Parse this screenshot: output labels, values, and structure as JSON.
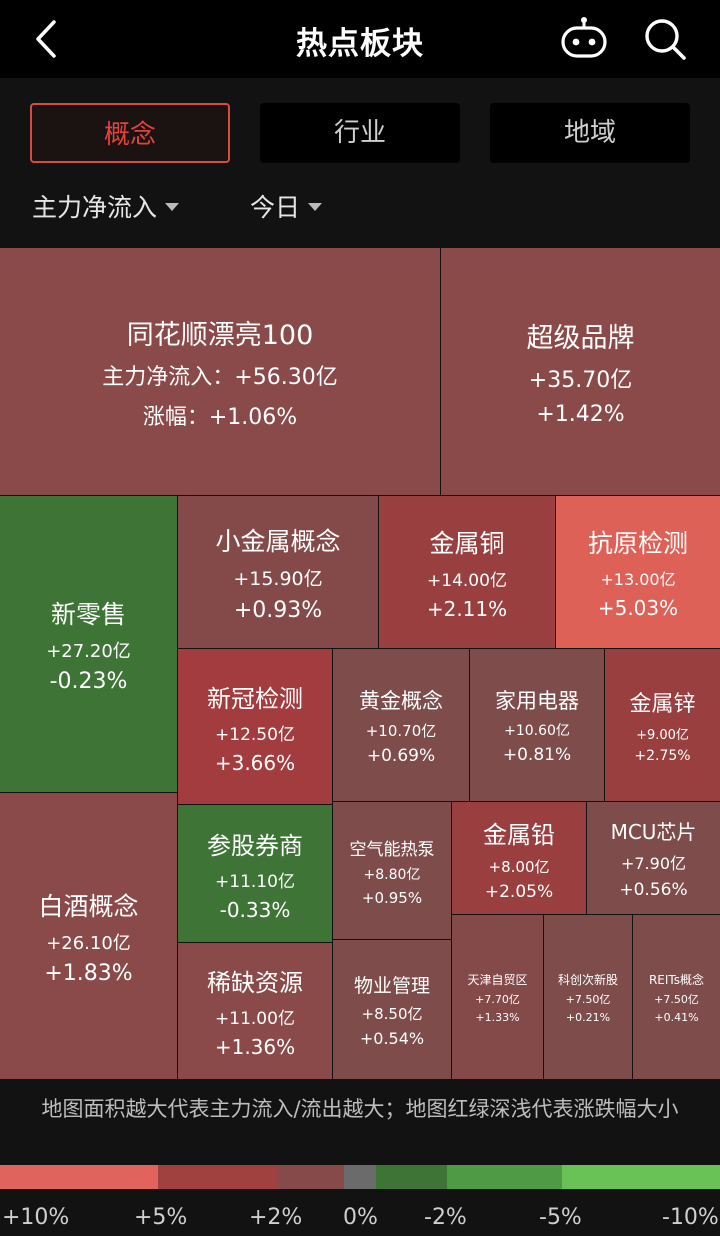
{
  "header": {
    "title": "热点板块"
  },
  "tabs": [
    {
      "label": "概念",
      "active": true
    },
    {
      "label": "行业",
      "active": false
    },
    {
      "label": "地域",
      "active": false
    }
  ],
  "filters": {
    "metric": "主力净流入",
    "period": "今日"
  },
  "treemap": {
    "cells": [
      {
        "name": "同花顺漂亮100",
        "flow": "主力净流入：+56.30亿",
        "change": "涨幅：+1.06%",
        "color": "#8b4a4a",
        "changePct": 1.06
      },
      {
        "name": "超级品牌",
        "flow": "+35.70亿",
        "change": "+1.42%",
        "color": "#8b4a4a",
        "changePct": 1.42
      },
      {
        "name": "新零售",
        "flow": "+27.20亿",
        "change": "-0.23%",
        "color": "#3e7537",
        "changePct": -0.23
      },
      {
        "name": "小金属概念",
        "flow": "+15.90亿",
        "change": "+0.93%",
        "color": "#844949",
        "changePct": 0.93
      },
      {
        "name": "金属铜",
        "flow": "+14.00亿",
        "change": "+2.11%",
        "color": "#993f40",
        "changePct": 2.11
      },
      {
        "name": "抗原检测",
        "flow": "+13.00亿",
        "change": "+5.03%",
        "color": "#de6158",
        "changePct": 5.03
      },
      {
        "name": "白酒概念",
        "flow": "+26.10亿",
        "change": "+1.83%",
        "color": "#8b4a4a",
        "changePct": 1.83
      },
      {
        "name": "新冠检测",
        "flow": "+12.50亿",
        "change": "+3.66%",
        "color": "#a23c3e",
        "changePct": 3.66
      },
      {
        "name": "黄金概念",
        "flow": "+10.70亿",
        "change": "+0.69%",
        "color": "#7f4c4c",
        "changePct": 0.69
      },
      {
        "name": "家用电器",
        "flow": "+10.60亿",
        "change": "+0.81%",
        "color": "#7f4c4c",
        "changePct": 0.81
      },
      {
        "name": "金属锌",
        "flow": "+9.00亿",
        "change": "+2.75%",
        "color": "#993f40",
        "changePct": 2.75
      },
      {
        "name": "参股券商",
        "flow": "+11.10亿",
        "change": "-0.33%",
        "color": "#3e7537",
        "changePct": -0.33
      },
      {
        "name": "空气能热泵",
        "flow": "+8.80亿",
        "change": "+0.95%",
        "color": "#7f4c4c",
        "changePct": 0.95
      },
      {
        "name": "金属铅",
        "flow": "+8.00亿",
        "change": "+2.05%",
        "color": "#993f40",
        "changePct": 2.05
      },
      {
        "name": "MCU芯片",
        "flow": "+7.90亿",
        "change": "+0.56%",
        "color": "#7f4c4c",
        "changePct": 0.56
      },
      {
        "name": "稀缺资源",
        "flow": "+11.00亿",
        "change": "+1.36%",
        "color": "#8b4a4a",
        "changePct": 1.36
      },
      {
        "name": "物业管理",
        "flow": "+8.50亿",
        "change": "+0.54%",
        "color": "#7f4c4c",
        "changePct": 0.54
      },
      {
        "name": "天津自贸区",
        "flow": "+7.70亿",
        "change": "+1.33%",
        "color": "#844949",
        "changePct": 1.33
      },
      {
        "name": "科创次新股",
        "flow": "+7.50亿",
        "change": "+0.21%",
        "color": "#7f4c4c",
        "changePct": 0.21
      },
      {
        "name": "REITs概念",
        "flow": "+7.50亿",
        "change": "+0.41%",
        "color": "#7f4c4c",
        "changePct": 0.41
      }
    ]
  },
  "note": "地图面积越大代表主力流入/流出越大；地图红绿深浅代表涨跌幅大小",
  "legend": {
    "colors": [
      "#e0645c",
      "#a0403f",
      "#874a4a",
      "#6b6b6b",
      "#3e7537",
      "#4f9a44",
      "#69c255"
    ],
    "labels": [
      "+10%",
      "+5%",
      "+2%",
      "0%",
      "-2%",
      "-5%",
      "-10%"
    ]
  }
}
